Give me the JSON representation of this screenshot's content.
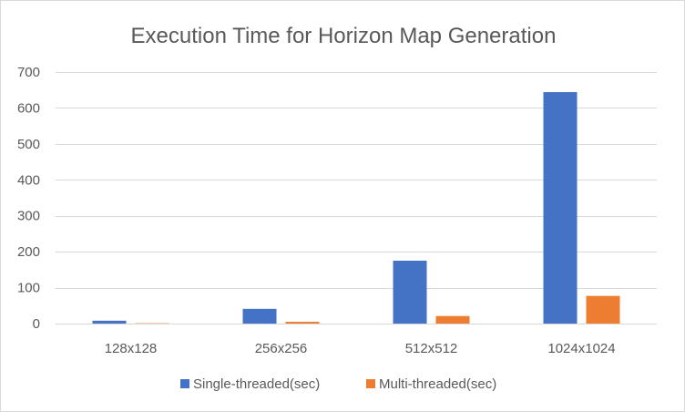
{
  "chart_data": {
    "type": "bar",
    "title": "Execution Time for Horizon Map Generation",
    "xlabel": "",
    "ylabel": "",
    "categories": [
      "128x128",
      "256x256",
      "512x512",
      "1024x1024"
    ],
    "series": [
      {
        "name": "Single-threaded(sec)",
        "color": "#4472C4",
        "values": [
          8,
          41,
          175,
          644
        ]
      },
      {
        "name": "Multi-threaded(sec)",
        "color": "#ED7D31",
        "values": [
          1,
          5,
          21,
          77
        ]
      }
    ],
    "ylim": [
      0,
      700
    ],
    "yticks": [
      0,
      100,
      200,
      300,
      400,
      500,
      600,
      700
    ],
    "grid": true,
    "legend_position": "bottom"
  }
}
